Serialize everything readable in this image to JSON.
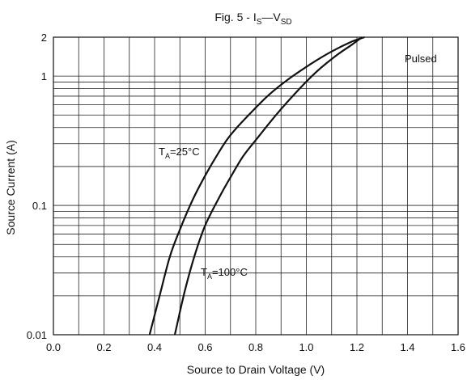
{
  "chart_data": {
    "type": "line",
    "title": {
      "prefix": "Fig. 5 - I",
      "sub1": "S",
      "dash": "—V",
      "sub2": "SD"
    },
    "xlabel": "Source to Drain Voltage (V)",
    "ylabel": "Source Current (A)",
    "xlim": [
      0.0,
      1.6
    ],
    "ylim": [
      0.01,
      2
    ],
    "yscale": "log",
    "grid": true,
    "xticks": [
      0.0,
      0.2,
      0.4,
      0.6,
      0.8,
      1.0,
      1.2,
      1.4,
      1.6
    ],
    "xtick_labels": [
      "0.0",
      "0.2",
      "0.4",
      "0.6",
      "0.8",
      "1.0",
      "1.2",
      "1.4",
      "1.6"
    ],
    "yticks": [
      0.01,
      0.1,
      1,
      2
    ],
    "ytick_labels": [
      "0.01",
      "0.1",
      "1",
      "2"
    ],
    "yminor_ticks": [
      0.02,
      0.03,
      0.04,
      0.05,
      0.06,
      0.07,
      0.08,
      0.09,
      0.2,
      0.3,
      0.4,
      0.5,
      0.6,
      0.7,
      0.8,
      0.9
    ],
    "note": "Pulsed",
    "series": [
      {
        "label_main": "T",
        "label_sub": "A",
        "label_rest": "=25°C",
        "x": [
          0.38,
          0.42,
          0.46,
          0.5,
          0.55,
          0.6,
          0.65,
          0.7,
          0.78,
          0.86,
          0.94,
          1.02,
          1.1,
          1.18,
          1.23
        ],
        "y": [
          0.01,
          0.02,
          0.04,
          0.065,
          0.11,
          0.17,
          0.25,
          0.35,
          0.52,
          0.74,
          0.98,
          1.25,
          1.55,
          1.85,
          2.0
        ]
      },
      {
        "label_main": "T",
        "label_sub": "A",
        "label_rest": "=100°C",
        "x": [
          0.48,
          0.52,
          0.56,
          0.6,
          0.65,
          0.7,
          0.75,
          0.8,
          0.88,
          0.96,
          1.04,
          1.12,
          1.18,
          1.22
        ],
        "y": [
          0.01,
          0.022,
          0.042,
          0.07,
          0.11,
          0.165,
          0.24,
          0.32,
          0.5,
          0.75,
          1.08,
          1.45,
          1.75,
          2.0
        ]
      }
    ]
  }
}
